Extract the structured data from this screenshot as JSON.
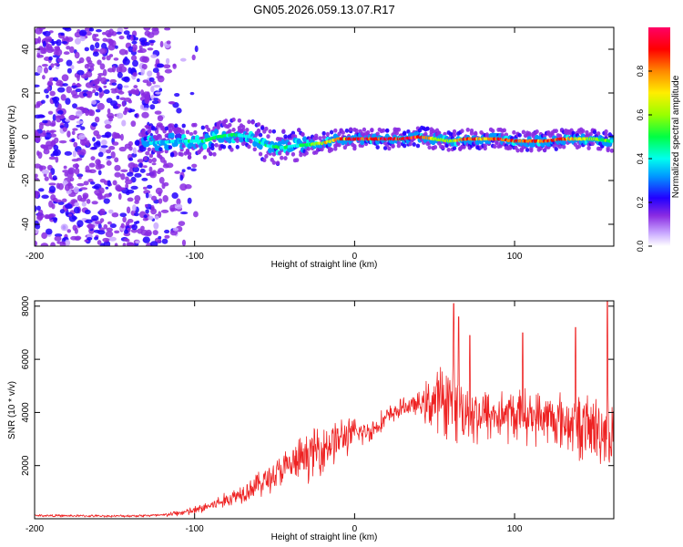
{
  "title": "GN05.2026.059.13.07.R17",
  "colors": {
    "snr_line": "#ee2222",
    "axis": "#000000",
    "background": "#ffffff"
  },
  "chart_data": [
    {
      "type": "heatmap",
      "name": "spectrogram",
      "xlabel": "Height of straight line (km)",
      "ylabel": "Frequency (Hz)",
      "xlim": [
        -200,
        162
      ],
      "ylim": [
        -50,
        50
      ],
      "x_ticks": [
        -200,
        -100,
        0,
        100
      ],
      "x_tick_labels": [
        "-200",
        "-100",
        "0",
        "100"
      ],
      "y_ticks": [
        -40,
        -20,
        0,
        20,
        40
      ],
      "y_tick_labels": [
        "-40",
        "-20",
        "0",
        "20",
        "40"
      ],
      "colorbar": {
        "label": "Normalized spectral amplitude",
        "range": [
          0,
          1
        ],
        "ticks": [
          0.0,
          0.2,
          0.4,
          0.6,
          0.8
        ],
        "tick_labels": [
          "0.0",
          "0.2",
          "0.4",
          "0.6",
          "0.8"
        ],
        "colormap": "rainbow (purple-blue-cyan-green-yellow-red-magenta)"
      },
      "ridge": {
        "description": "peak frequency track vs height",
        "x": [
          -130,
          -110,
          -95,
          -85,
          -75,
          -65,
          -55,
          -45,
          -35,
          -20,
          -10,
          0,
          10,
          20,
          30,
          40,
          50,
          60,
          70,
          80,
          90,
          100,
          110,
          120,
          130,
          140,
          150,
          160
        ],
        "y": [
          -3,
          -2,
          -2,
          0,
          1,
          0,
          -4,
          -5,
          -4,
          -3,
          -1,
          -1,
          -1,
          -1,
          -1,
          0,
          -1,
          -2,
          -1,
          -1,
          -1,
          -2,
          -2,
          -2,
          -1,
          -1,
          -1,
          -2
        ],
        "amplitude": [
          0.3,
          0.35,
          0.4,
          0.45,
          0.45,
          0.35,
          0.4,
          0.4,
          0.4,
          0.6,
          0.8,
          0.85,
          0.85,
          0.9,
          0.9,
          0.9,
          0.6,
          0.6,
          0.85,
          0.7,
          0.85,
          0.8,
          0.75,
          0.8,
          0.85,
          0.6,
          0.55,
          0.45
        ]
      },
      "noise_region": {
        "x_range": [
          -200,
          -95
        ],
        "y_range": [
          -50,
          50
        ]
      }
    },
    {
      "type": "line",
      "name": "snr",
      "xlabel": "Height of straight line (km)",
      "ylabel": "SNR (10 * v/v)",
      "xlim": [
        -200,
        162
      ],
      "ylim": [
        0,
        8200
      ],
      "x_ticks": [
        -200,
        -100,
        0,
        100
      ],
      "x_tick_labels": [
        "-200",
        "-100",
        "0",
        "100"
      ],
      "y_ticks": [
        2000,
        4000,
        6000,
        8000
      ],
      "y_tick_labels": [
        "2000",
        "4000",
        "6000",
        "8000"
      ],
      "series": [
        {
          "name": "SNR",
          "trend_x": [
            -200,
            -150,
            -120,
            -100,
            -80,
            -60,
            -40,
            -20,
            -10,
            0,
            10,
            20,
            30,
            40,
            50,
            60,
            70,
            80,
            100,
            120,
            140,
            162
          ],
          "trend_y": [
            120,
            100,
            130,
            300,
            700,
            1300,
            2000,
            2700,
            3000,
            3200,
            3300,
            3800,
            4200,
            4300,
            4400,
            4500,
            4000,
            3900,
            3900,
            3800,
            3500,
            3200
          ],
          "spread_y": [
            60,
            50,
            80,
            200,
            350,
            600,
            900,
            1200,
            1000,
            700,
            500,
            500,
            400,
            500,
            1500,
            1800,
            1500,
            1300,
            1200,
            1200,
            1500,
            1800
          ],
          "peaks": [
            {
              "x": 62,
              "y": 8100
            },
            {
              "x": 65,
              "y": 7600
            },
            {
              "x": 72,
              "y": 6900
            },
            {
              "x": 105,
              "y": 7000
            },
            {
              "x": 138,
              "y": 7200
            },
            {
              "x": 158,
              "y": 8200
            }
          ]
        }
      ]
    }
  ]
}
